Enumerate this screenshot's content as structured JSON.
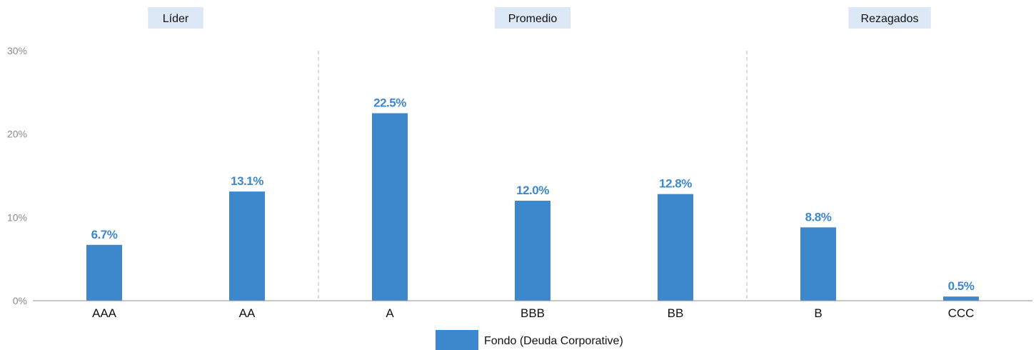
{
  "chart_data": {
    "type": "bar",
    "categories": [
      "AAA",
      "AA",
      "A",
      "BBB",
      "BB",
      "B",
      "CCC"
    ],
    "series": [
      {
        "name": "Fondo (Deuda Corporative)",
        "values": [
          6.7,
          13.1,
          22.5,
          12.0,
          12.8,
          8.8,
          0.5
        ],
        "color": "#3d87cc"
      }
    ],
    "value_labels": [
      "6.7%",
      "13.1%",
      "22.5%",
      "12.0%",
      "12.8%",
      "8.8%",
      "0.5%"
    ],
    "ylim": [
      0,
      30
    ],
    "yticks": [
      0,
      10,
      20,
      30
    ],
    "ytick_labels": [
      "0%",
      "10%",
      "20%",
      "30%"
    ],
    "groups": [
      {
        "label": "Líder",
        "categories": [
          "AAA",
          "AA"
        ]
      },
      {
        "label": "Promedio",
        "categories": [
          "A",
          "BBB",
          "BB"
        ]
      },
      {
        "label": "Rezagados",
        "categories": [
          "B",
          "CCC"
        ]
      }
    ],
    "group_label_bg": "#dce8f5",
    "grid": false,
    "legend": "bottom-center"
  }
}
